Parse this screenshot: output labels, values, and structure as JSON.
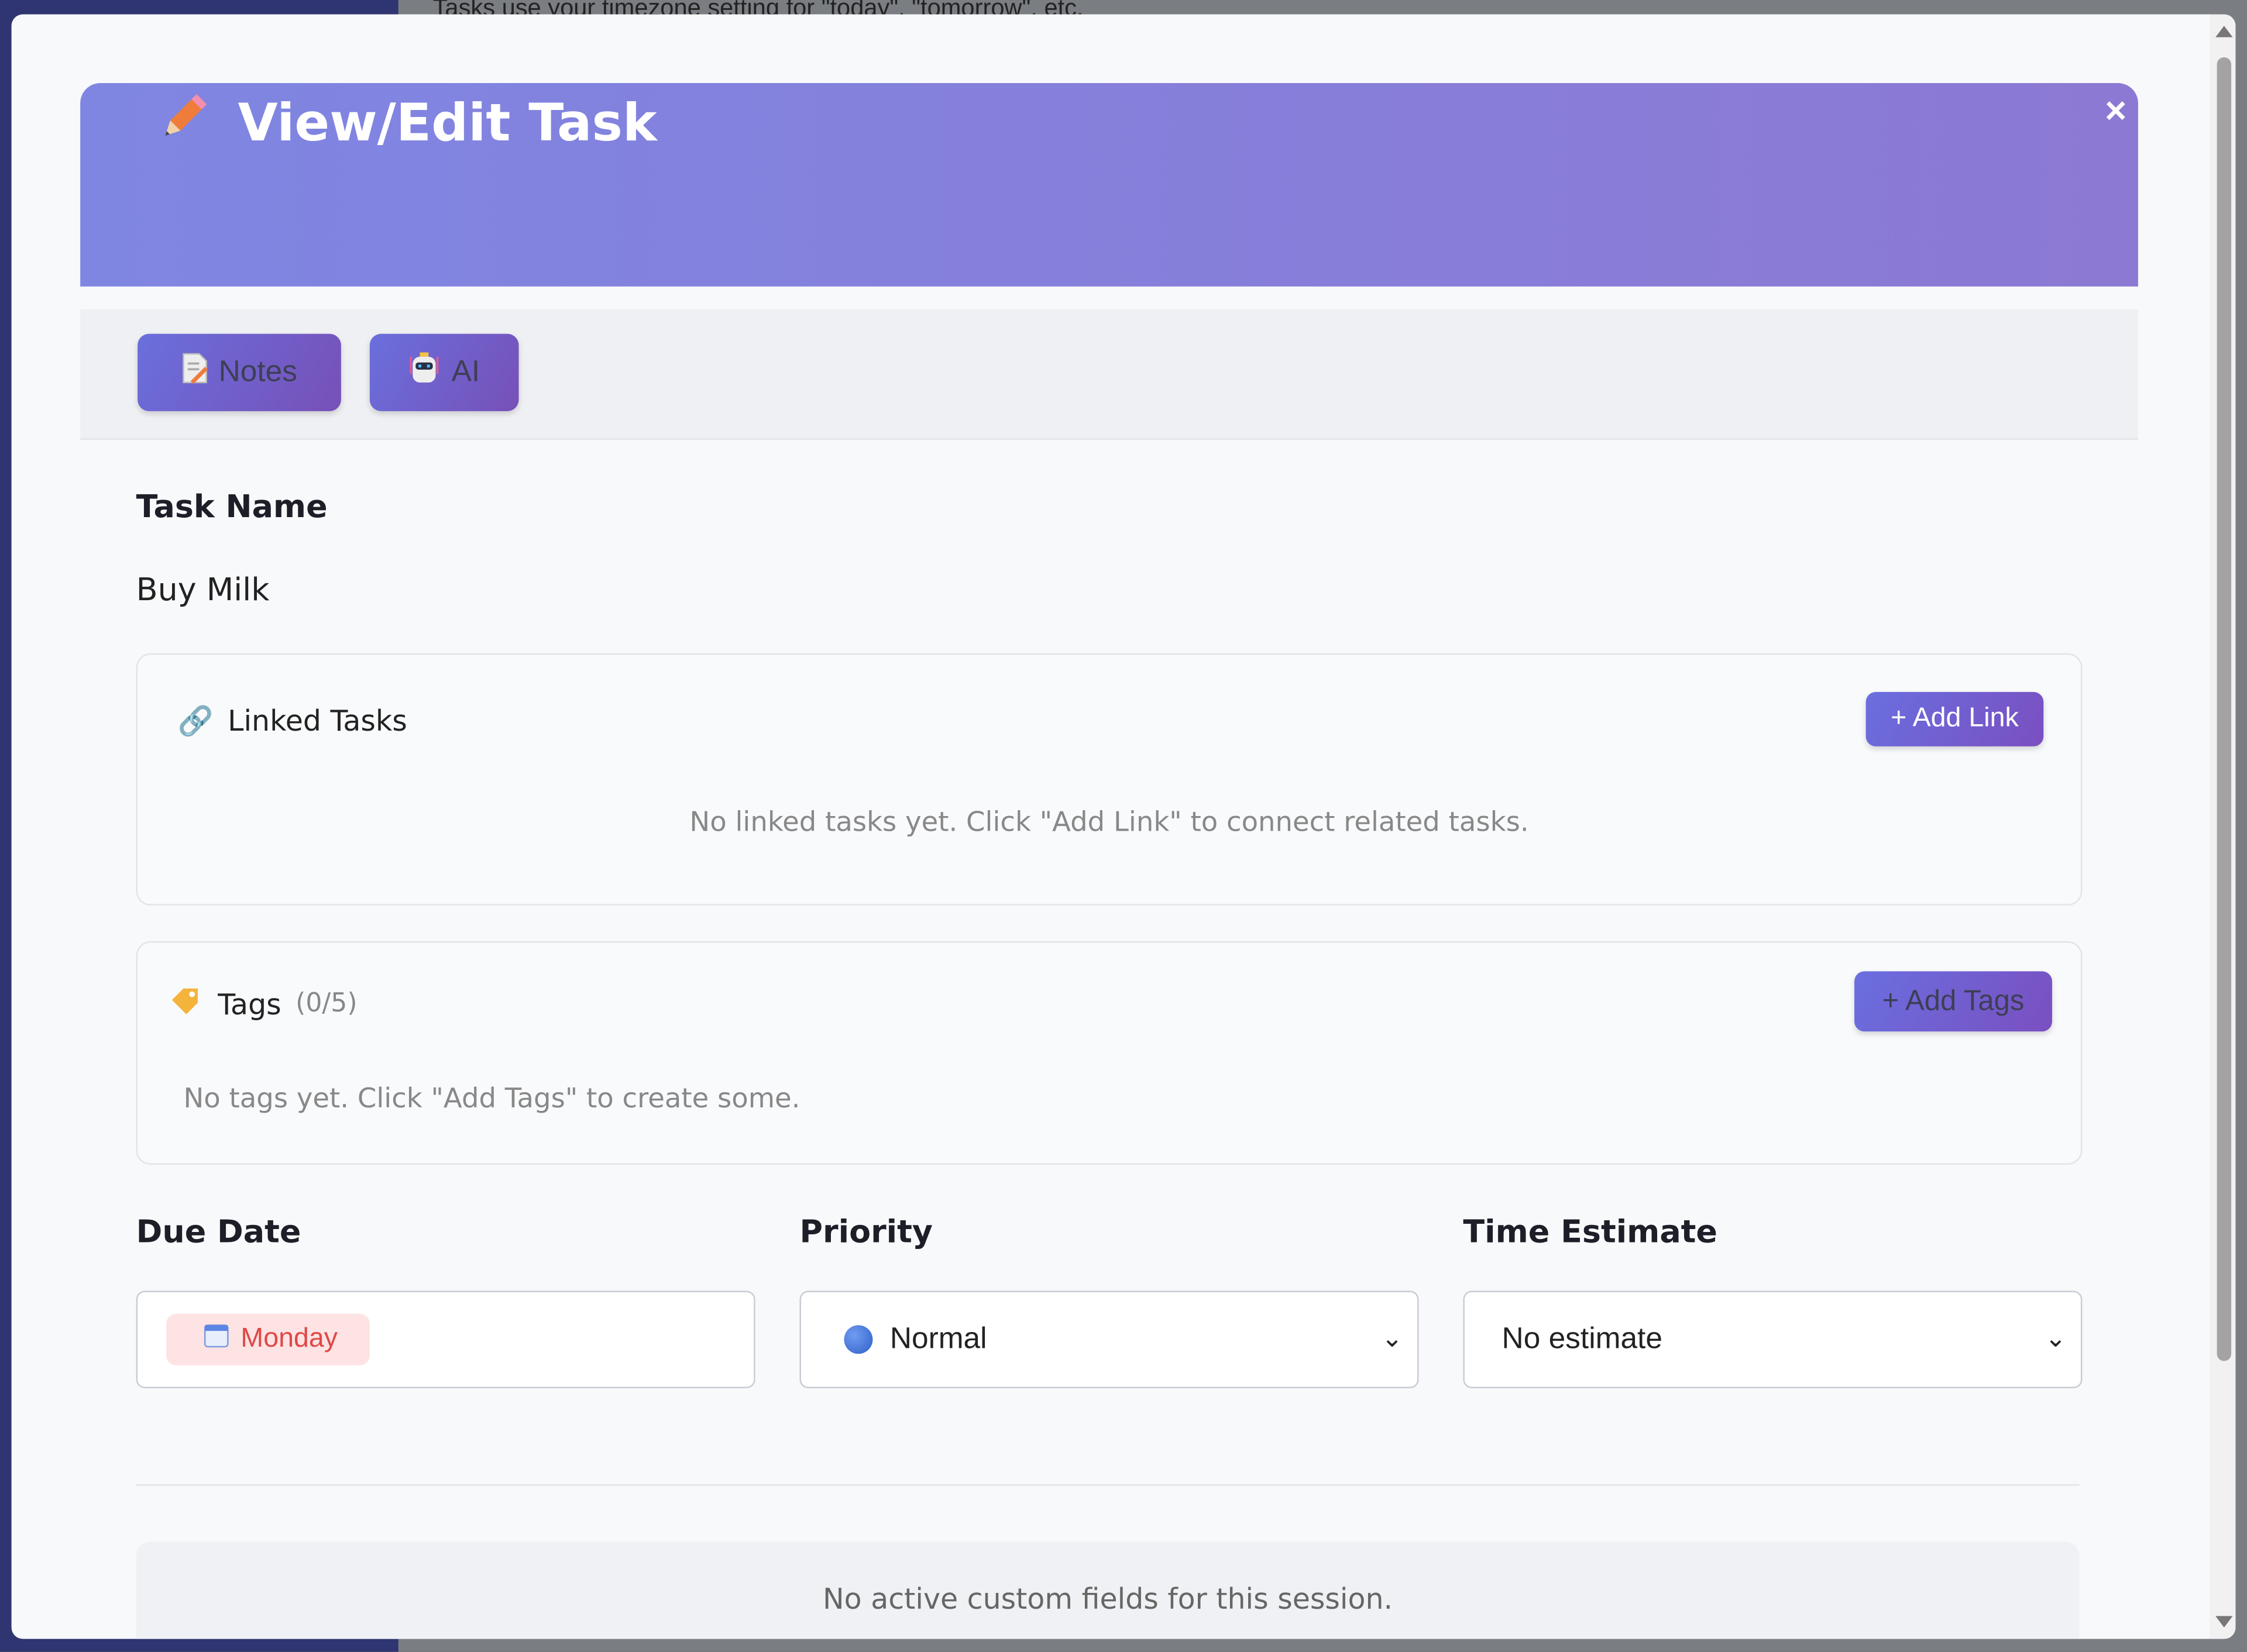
{
  "background": {
    "hint_text": "Tasks use your timezone setting for \"today\", \"tomorrow\", etc."
  },
  "modal": {
    "title": "View/Edit Task",
    "title_icon": "pencil-icon",
    "close_label": "×",
    "toolbar": {
      "notes_label": "Notes",
      "notes_icon": "memo-icon",
      "ai_label": "AI",
      "ai_icon": "robot-icon"
    },
    "task_name": {
      "label": "Task Name",
      "value": "Buy Milk"
    },
    "linked_tasks": {
      "title": "Linked Tasks",
      "icon": "link-icon",
      "add_label": "+ Add Link",
      "empty_text": "No linked tasks yet. Click \"Add Link\" to connect related tasks."
    },
    "tags": {
      "title": "Tags",
      "count": "(0/5)",
      "icon": "tag-icon",
      "add_label": "+ Add Tags",
      "empty_text": "No tags yet. Click \"Add Tags\" to create some."
    },
    "due_date": {
      "label": "Due Date",
      "value": "Monday",
      "icon": "calendar-icon"
    },
    "priority": {
      "label": "Priority",
      "value": "Normal",
      "dot_color": "#3b6fd8"
    },
    "time_estimate": {
      "label": "Time Estimate",
      "value": "No estimate"
    },
    "custom_fields": {
      "empty_text": "No active custom fields for this session."
    }
  },
  "colors": {
    "header_gradient_start": "#7f86e2",
    "header_gradient_end": "#8c79d4",
    "button_gradient_start": "#6a6fe0",
    "button_gradient_end": "#7a4fc0",
    "due_chip_bg": "#fde3e3",
    "due_chip_text": "#e04848"
  }
}
